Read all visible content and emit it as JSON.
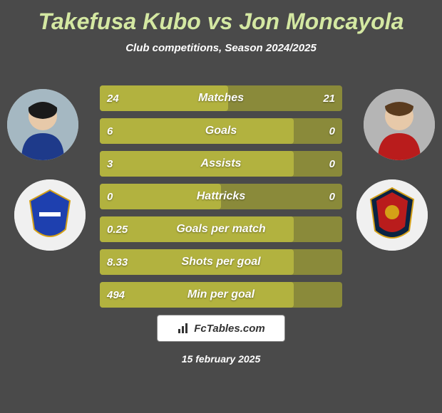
{
  "title": "Takefusa Kubo vs Jon Moncayola",
  "subtitle": "Club competitions, Season 2024/2025",
  "date": "15 february 2025",
  "footer_brand": "FcTables.com",
  "colors": {
    "bg": "#4a4a4a",
    "title": "#d4e8a2",
    "bar_bg": "#8a8a3a",
    "bar_fill": "#b2b23f",
    "text": "#ffffff"
  },
  "player_left": {
    "name": "Takefusa Kubo",
    "club": "Real Sociedad"
  },
  "player_right": {
    "name": "Jon Moncayola",
    "club": "Osasuna"
  },
  "bars": [
    {
      "label": "Matches",
      "left": "24",
      "right": "21",
      "fill_pct": 53
    },
    {
      "label": "Goals",
      "left": "6",
      "right": "0",
      "fill_pct": 80
    },
    {
      "label": "Assists",
      "left": "3",
      "right": "0",
      "fill_pct": 80
    },
    {
      "label": "Hattricks",
      "left": "0",
      "right": "0",
      "fill_pct": 50
    },
    {
      "label": "Goals per match",
      "left": "0.25",
      "right": "",
      "fill_pct": 80
    },
    {
      "label": "Shots per goal",
      "left": "8.33",
      "right": "",
      "fill_pct": 80
    },
    {
      "label": "Min per goal",
      "left": "494",
      "right": "",
      "fill_pct": 80
    }
  ]
}
